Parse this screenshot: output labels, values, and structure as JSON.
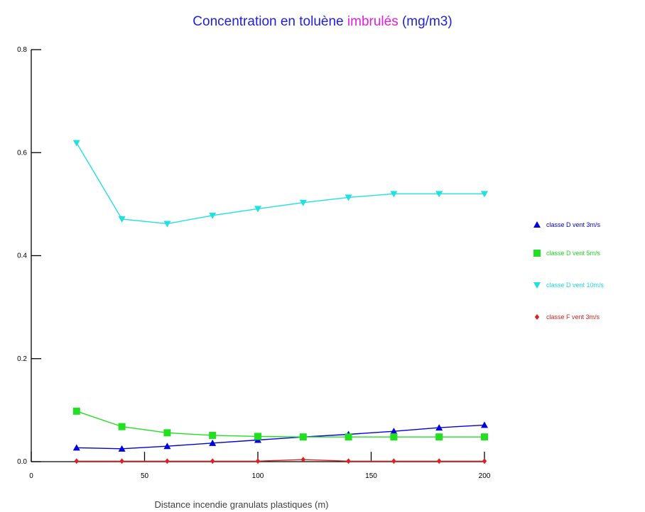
{
  "chart_data": {
    "type": "line",
    "title_part1": "Concentration en toluène ",
    "title_part2": "imbrulés",
    "title_part3": " (mg/m3)",
    "xlabel": "Distance incendie granulats plastiques (m)",
    "ylabel": "",
    "xlim": [
      0,
      200
    ],
    "ylim": [
      0,
      0.8
    ],
    "x_ticks": [
      0,
      50,
      100,
      150,
      200
    ],
    "y_ticks": [
      0.0,
      0.2,
      0.4,
      0.6,
      0.8
    ],
    "x_tick_labels": [
      "0",
      "50",
      "100",
      "150",
      "200"
    ],
    "y_tick_labels": [
      "0.0",
      "0.2",
      "0.4",
      "0.6",
      "0.8"
    ],
    "x": [
      20,
      40,
      60,
      80,
      100,
      120,
      140,
      160,
      180,
      200
    ],
    "grid": false,
    "legend_position": "right",
    "series": [
      {
        "name": "classe D vent 3m/s",
        "color": "#0000e0",
        "marker": "triangle-up",
        "values": [
          0.027,
          0.025,
          0.03,
          0.036,
          0.042,
          0.048,
          0.053,
          0.059,
          0.066,
          0.071
        ]
      },
      {
        "name": "classe D vent 5m/s",
        "color": "#20e020",
        "marker": "square",
        "values": [
          0.098,
          0.068,
          0.056,
          0.051,
          0.049,
          0.048,
          0.048,
          0.048,
          0.048,
          0.048
        ]
      },
      {
        "name": "classe D vent 10m/s",
        "color": "#20e0e0",
        "marker": "triangle-down",
        "values": [
          0.619,
          0.471,
          0.462,
          0.478,
          0.491,
          0.503,
          0.513,
          0.52,
          0.52,
          0.52
        ]
      },
      {
        "name": "classe F vent 3m/s",
        "color": "#e02020",
        "marker": "diamond",
        "values": [
          0.001,
          0.001,
          0.001,
          0.001,
          0.001,
          0.004,
          0.001,
          0.001,
          0.001,
          0.001
        ]
      }
    ]
  }
}
